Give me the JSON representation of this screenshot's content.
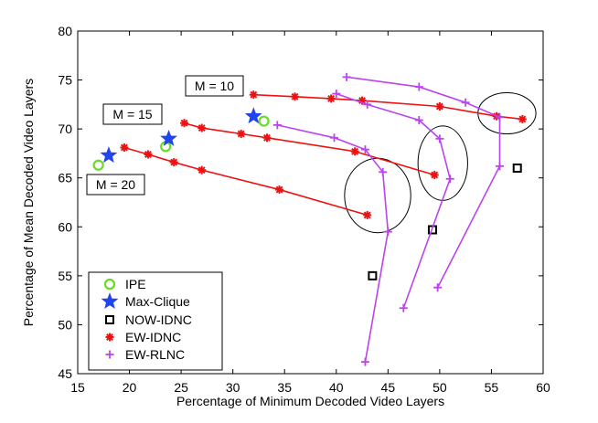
{
  "chart_data": {
    "type": "scatter",
    "title": "",
    "xlabel": "Percentage of Minimum Decoded Video Layers",
    "ylabel": "Percentage of Mean Decoded Video Layers",
    "xlim": [
      15,
      60
    ],
    "ylim": [
      45,
      80
    ],
    "xticks": [
      15,
      20,
      25,
      30,
      35,
      40,
      45,
      50,
      55,
      60
    ],
    "yticks": [
      45,
      50,
      55,
      60,
      65,
      70,
      75,
      80
    ],
    "grid": false,
    "legend_position": "bottom-left",
    "colors": {
      "IPE": "#66dd22",
      "Max-Clique": "#2244ee",
      "NOW-IDNC": "#000000",
      "EW-IDNC": "#ee1111",
      "EW-RLNC": "#bb44ee"
    },
    "series": [
      {
        "name": "IPE",
        "marker": "circle",
        "line": false,
        "points": [
          [
            17.0,
            66.3
          ],
          [
            23.5,
            68.2
          ],
          [
            33.0,
            70.8
          ]
        ]
      },
      {
        "name": "Max-Clique",
        "marker": "star",
        "line": false,
        "points": [
          [
            18.0,
            67.3
          ],
          [
            23.8,
            69.0
          ],
          [
            32.0,
            71.3
          ]
        ]
      },
      {
        "name": "NOW-IDNC",
        "marker": "square",
        "line": false,
        "points": [
          [
            43.5,
            55.0
          ],
          [
            49.3,
            59.7
          ],
          [
            57.5,
            66.0
          ]
        ]
      },
      {
        "name": "EW-IDNC",
        "marker": "asterisk",
        "line": true,
        "groups": [
          [
            [
              32.0,
              73.5
            ],
            [
              36.0,
              73.3
            ],
            [
              39.5,
              73.1
            ],
            [
              42.5,
              72.9
            ],
            [
              50.0,
              72.3
            ],
            [
              55.5,
              71.3
            ],
            [
              58.0,
              71.0
            ]
          ],
          [
            [
              25.3,
              70.6
            ],
            [
              27.0,
              70.1
            ],
            [
              30.8,
              69.5
            ],
            [
              33.3,
              69.1
            ],
            [
              41.8,
              67.7
            ],
            [
              49.5,
              65.3
            ]
          ],
          [
            [
              19.5,
              68.1
            ],
            [
              21.8,
              67.4
            ],
            [
              24.3,
              66.6
            ],
            [
              27.0,
              65.8
            ],
            [
              34.5,
              63.8
            ],
            [
              43.0,
              61.2
            ]
          ]
        ]
      },
      {
        "name": "EW-RLNC",
        "marker": "plus",
        "line": true,
        "groups": [
          [
            [
              41.0,
              75.3
            ],
            [
              48.0,
              74.3
            ],
            [
              52.5,
              72.7
            ],
            [
              55.8,
              71.2
            ],
            [
              55.8,
              66.2
            ],
            [
              49.8,
              53.8
            ]
          ],
          [
            [
              40.0,
              73.6
            ],
            [
              43.0,
              72.5
            ],
            [
              48.0,
              70.9
            ],
            [
              50.0,
              69.0
            ],
            [
              51.0,
              64.9
            ],
            [
              46.5,
              51.7
            ]
          ],
          [
            [
              34.3,
              70.4
            ],
            [
              39.8,
              69.1
            ],
            [
              42.8,
              67.9
            ],
            [
              44.5,
              65.6
            ],
            [
              45.0,
              59.5
            ],
            [
              42.8,
              46.2
            ]
          ]
        ]
      }
    ],
    "ellipses": [
      {
        "cx": 56.5,
        "cy": 71.6,
        "rx": 2.8,
        "ry": 2.1
      },
      {
        "cx": 50.3,
        "cy": 66.5,
        "rx": 2.4,
        "ry": 3.8
      },
      {
        "cx": 44.0,
        "cy": 63.2,
        "rx": 3.2,
        "ry": 3.8
      }
    ],
    "annotations": [
      {
        "text": "M = 10"
      },
      {
        "text": "M = 15"
      },
      {
        "text": "M = 20"
      }
    ]
  }
}
